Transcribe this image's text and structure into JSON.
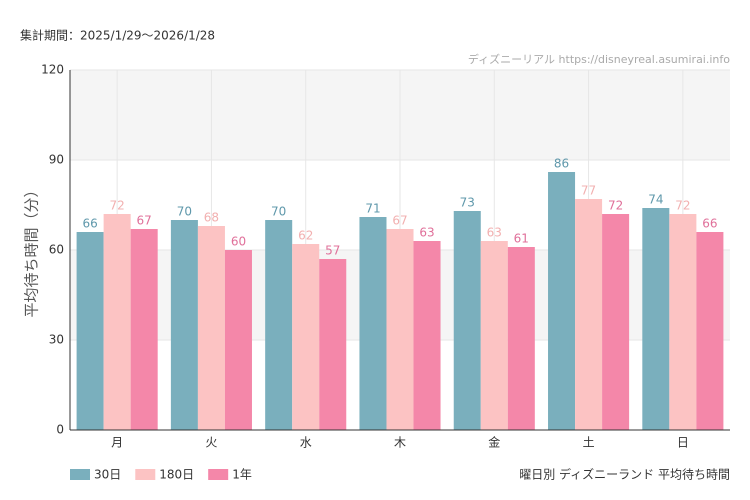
{
  "period": "集計期間：2025/1/29～2026/1/28",
  "source": "ディズニーリアル https://disneyreal.asumirai.info",
  "chart_data": {
    "type": "bar",
    "title": "曜日別 ディズニーランド 平均待ち時間",
    "y_label": "平均待ち時間（分）",
    "categories": [
      "月",
      "火",
      "水",
      "木",
      "金",
      "土",
      "日"
    ],
    "series": [
      {
        "name": "30日",
        "color": "#7aafbd",
        "label_color": "#5f98ab",
        "values": [
          66,
          70,
          70,
          71,
          73,
          86,
          74
        ]
      },
      {
        "name": "180日",
        "color": "#fcc3c3",
        "label_color": "#f2b0b0",
        "values": [
          72,
          68,
          62,
          67,
          63,
          77,
          72
        ]
      },
      {
        "name": "1年",
        "color": "#f487a9",
        "label_color": "#e0709a",
        "values": [
          67,
          60,
          57,
          63,
          61,
          72,
          66
        ]
      }
    ],
    "ylim": [
      0,
      120
    ],
    "yticks": [
      0,
      30,
      60,
      90,
      120
    ],
    "grid": true,
    "legend": "bottom-left"
  }
}
